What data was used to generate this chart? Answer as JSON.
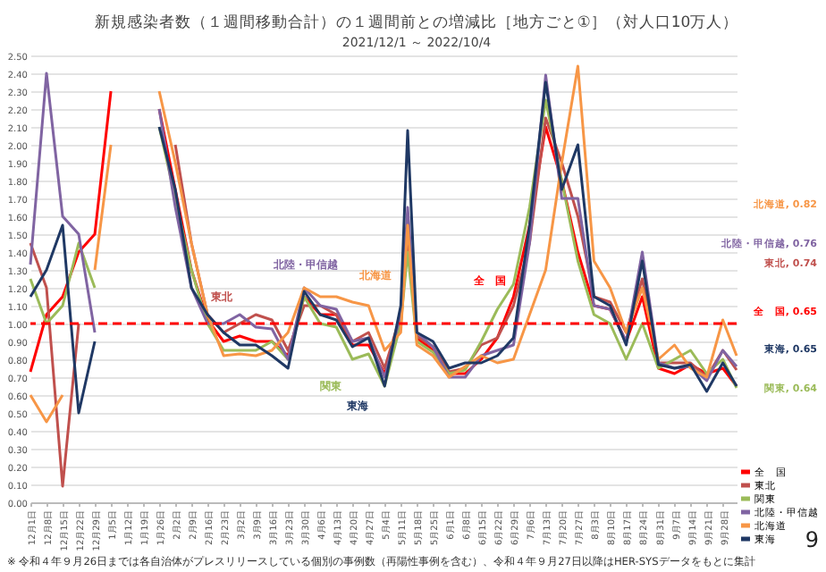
{
  "chart_data": {
    "type": "line",
    "title": "新規感染者数（１週間移動合計）の１週間前との増減比［地方ごと①］（対人口10万人）",
    "subtitle": "2021/12/1 ～ 2022/10/4",
    "x": [
      "2021-12-01",
      "2021-12-08",
      "2021-12-15",
      "2021-12-22",
      "2021-12-29",
      "2022-01-05",
      "2022-01-12",
      "2022-01-19",
      "2022-01-26",
      "2022-02-02",
      "2022-02-09",
      "2022-02-16",
      "2022-02-23",
      "2022-03-02",
      "2022-03-09",
      "2022-03-16",
      "2022-03-23",
      "2022-03-30",
      "2022-04-06",
      "2022-04-13",
      "2022-04-20",
      "2022-04-27",
      "2022-05-04",
      "2022-05-11",
      "2022-05-14",
      "2022-05-18",
      "2022-05-25",
      "2022-06-01",
      "2022-06-08",
      "2022-06-15",
      "2022-06-22",
      "2022-06-29",
      "2022-07-06",
      "2022-07-13",
      "2022-07-20",
      "2022-07-27",
      "2022-08-03",
      "2022-08-10",
      "2022-08-17",
      "2022-08-24",
      "2022-08-31",
      "2022-09-07",
      "2022-09-14",
      "2022-09-21",
      "2022-09-28",
      "2022-10-04"
    ],
    "series": [
      {
        "name": "全　国",
        "color": "#ff0000",
        "values": [
          0.73,
          1.05,
          1.15,
          1.4,
          1.5,
          2.3,
          null,
          null,
          2.2,
          1.75,
          1.3,
          1.02,
          0.9,
          0.93,
          0.9,
          0.9,
          0.82,
          1.15,
          1.05,
          1.05,
          0.88,
          0.88,
          0.72,
          1.0,
          1.5,
          0.92,
          0.85,
          0.72,
          0.72,
          0.8,
          0.92,
          1.15,
          1.55,
          2.1,
          1.8,
          1.4,
          1.1,
          1.08,
          0.9,
          1.15,
          0.75,
          0.72,
          0.77,
          0.72,
          0.75,
          0.65
        ]
      },
      {
        "name": "東北",
        "color": "#c0504d",
        "values": [
          1.45,
          1.2,
          0.09,
          1.0,
          null,
          null,
          null,
          null,
          null,
          2.0,
          1.45,
          1.05,
          0.95,
          1.0,
          1.05,
          1.02,
          0.85,
          1.1,
          1.1,
          1.05,
          0.9,
          0.95,
          0.75,
          1.05,
          1.5,
          0.93,
          0.87,
          0.73,
          0.75,
          0.88,
          0.92,
          1.1,
          1.45,
          2.15,
          1.9,
          1.6,
          1.15,
          1.12,
          0.95,
          1.25,
          0.78,
          0.78,
          0.78,
          0.7,
          0.85,
          0.74
        ]
      },
      {
        "name": "関東",
        "color": "#9bbb59",
        "values": [
          1.25,
          1.0,
          1.1,
          1.45,
          1.2,
          null,
          null,
          null,
          2.1,
          1.7,
          1.3,
          1.0,
          0.85,
          0.85,
          0.85,
          0.9,
          0.8,
          1.15,
          1.0,
          0.98,
          0.8,
          0.83,
          0.65,
          1.0,
          1.4,
          0.9,
          0.84,
          0.72,
          0.74,
          0.9,
          1.08,
          1.22,
          1.65,
          2.25,
          1.8,
          1.35,
          1.05,
          1.0,
          0.8,
          1.0,
          0.75,
          0.8,
          0.85,
          0.72,
          0.8,
          0.64
        ]
      },
      {
        "name": "北陸・甲信越",
        "color": "#8064a2",
        "values": [
          1.33,
          2.4,
          1.6,
          1.5,
          0.95,
          null,
          null,
          null,
          2.2,
          1.65,
          1.2,
          1.0,
          1.0,
          1.05,
          0.98,
          0.97,
          0.8,
          1.2,
          1.1,
          1.08,
          0.9,
          0.92,
          0.7,
          1.05,
          1.65,
          0.95,
          0.87,
          0.7,
          0.7,
          0.82,
          0.85,
          0.88,
          1.45,
          2.39,
          1.7,
          1.7,
          1.1,
          1.08,
          0.9,
          1.4,
          0.78,
          0.75,
          0.76,
          0.68,
          0.85,
          0.76
        ]
      },
      {
        "name": "北海道",
        "color": "#f79646",
        "values": [
          0.6,
          0.45,
          0.6,
          null,
          1.3,
          2.0,
          null,
          null,
          2.3,
          1.9,
          1.45,
          1.05,
          0.82,
          0.83,
          0.82,
          0.85,
          0.95,
          1.2,
          1.15,
          1.15,
          1.12,
          1.1,
          0.85,
          0.95,
          1.55,
          0.88,
          0.82,
          0.7,
          0.76,
          0.82,
          0.78,
          0.8,
          1.05,
          1.3,
          1.9,
          2.44,
          1.35,
          1.2,
          0.95,
          1.2,
          0.8,
          0.88,
          0.75,
          0.7,
          1.02,
          0.82
        ]
      },
      {
        "name": "東海",
        "color": "#1f3864",
        "values": [
          1.15,
          1.3,
          1.55,
          0.5,
          0.9,
          null,
          null,
          null,
          2.1,
          1.75,
          1.2,
          1.05,
          0.95,
          0.88,
          0.88,
          0.82,
          0.75,
          1.18,
          1.05,
          1.02,
          0.87,
          0.92,
          0.65,
          1.1,
          2.08,
          0.95,
          0.9,
          0.75,
          0.78,
          0.78,
          0.82,
          0.92,
          1.55,
          2.35,
          1.75,
          2.0,
          1.15,
          1.1,
          0.88,
          1.35,
          0.77,
          0.75,
          0.77,
          0.62,
          0.78,
          0.65
        ]
      }
    ],
    "xlim": [
      "2021-12-01",
      "2022-10-04"
    ],
    "xticks": [
      {
        "value": "2021-12-01",
        "label": "12月1日"
      },
      {
        "value": "2021-12-08",
        "label": "12月8日"
      },
      {
        "value": "2021-12-15",
        "label": "12月15日"
      },
      {
        "value": "2021-12-22",
        "label": "12月22日"
      },
      {
        "value": "2021-12-29",
        "label": "12月29日"
      },
      {
        "value": "2022-01-05",
        "label": "1月5日"
      },
      {
        "value": "2022-01-12",
        "label": "1月12日"
      },
      {
        "value": "2022-01-19",
        "label": "1月19日"
      },
      {
        "value": "2022-01-26",
        "label": "1月26日"
      },
      {
        "value": "2022-02-02",
        "label": "2月2日"
      },
      {
        "value": "2022-02-09",
        "label": "2月9日"
      },
      {
        "value": "2022-02-16",
        "label": "2月16日"
      },
      {
        "value": "2022-02-23",
        "label": "2月23日"
      },
      {
        "value": "2022-03-02",
        "label": "3月2日"
      },
      {
        "value": "2022-03-09",
        "label": "3月9日"
      },
      {
        "value": "2022-03-16",
        "label": "3月16日"
      },
      {
        "value": "2022-03-23",
        "label": "3月23日"
      },
      {
        "value": "2022-03-30",
        "label": "3月30日"
      },
      {
        "value": "2022-04-06",
        "label": "4月6日"
      },
      {
        "value": "2022-04-13",
        "label": "4月13日"
      },
      {
        "value": "2022-04-20",
        "label": "4月20日"
      },
      {
        "value": "2022-04-27",
        "label": "4月27日"
      },
      {
        "value": "2022-05-04",
        "label": "5月4日"
      },
      {
        "value": "2022-05-11",
        "label": "5月11日"
      },
      {
        "value": "2022-05-18",
        "label": "5月18日"
      },
      {
        "value": "2022-05-25",
        "label": "5月25日"
      },
      {
        "value": "2022-06-01",
        "label": "6月1日"
      },
      {
        "value": "2022-06-08",
        "label": "6月8日"
      },
      {
        "value": "2022-06-15",
        "label": "6月15日"
      },
      {
        "value": "2022-06-22",
        "label": "6月22日"
      },
      {
        "value": "2022-06-29",
        "label": "6月29日"
      },
      {
        "value": "2022-07-06",
        "label": "7月6日"
      },
      {
        "value": "2022-07-13",
        "label": "7月13日"
      },
      {
        "value": "2022-07-20",
        "label": "7月20日"
      },
      {
        "value": "2022-07-27",
        "label": "7月27日"
      },
      {
        "value": "2022-08-03",
        "label": "8月3日"
      },
      {
        "value": "2022-08-10",
        "label": "8月10日"
      },
      {
        "value": "2022-08-17",
        "label": "8月17日"
      },
      {
        "value": "2022-08-24",
        "label": "8月24日"
      },
      {
        "value": "2022-08-31",
        "label": "8月31日"
      },
      {
        "value": "2022-09-07",
        "label": "9月7日"
      },
      {
        "value": "2022-09-14",
        "label": "9月14日"
      },
      {
        "value": "2022-09-21",
        "label": "9月21日"
      },
      {
        "value": "2022-09-28",
        "label": "9月28日"
      }
    ],
    "ylim": [
      0,
      2.5
    ],
    "yticks": [
      {
        "value": 0,
        "label": "0.00"
      },
      {
        "value": 0.1,
        "label": "0.10"
      },
      {
        "value": 0.2,
        "label": "0.20"
      },
      {
        "value": 0.3,
        "label": "0.30"
      },
      {
        "value": 0.4,
        "label": "0.40"
      },
      {
        "value": 0.5,
        "label": "0.50"
      },
      {
        "value": 0.6,
        "label": "0.60"
      },
      {
        "value": 0.7,
        "label": "0.70"
      },
      {
        "value": 0.8,
        "label": "0.80"
      },
      {
        "value": 0.9,
        "label": "0.90"
      },
      {
        "value": 1,
        "label": "1.00"
      },
      {
        "value": 1.1,
        "label": "1.10"
      },
      {
        "value": 1.2,
        "label": "1.20"
      },
      {
        "value": 1.3,
        "label": "1.30"
      },
      {
        "value": 1.4,
        "label": "1.40"
      },
      {
        "value": 1.5,
        "label": "1.50"
      },
      {
        "value": 1.6,
        "label": "1.60"
      },
      {
        "value": 1.7,
        "label": "1.70"
      },
      {
        "value": 1.8,
        "label": "1.80"
      },
      {
        "value": 1.9,
        "label": "1.90"
      },
      {
        "value": 2,
        "label": "2.00"
      },
      {
        "value": 2.1,
        "label": "2.10"
      },
      {
        "value": 2.2,
        "label": "2.20"
      },
      {
        "value": 2.3,
        "label": "2.30"
      },
      {
        "value": 2.4,
        "label": "2.40"
      },
      {
        "value": 2.5,
        "label": "2.50"
      }
    ],
    "ref_lines": [
      {
        "axis": "y",
        "value": 1.0,
        "color": "#ff0000",
        "line_style": "dashed"
      }
    ],
    "annotations": [
      "東北",
      "北陸・甲信越",
      "北海道",
      "全　国",
      "関東",
      "東海",
      "北海道, 0.82",
      "北陸・甲信越, 0.76",
      "東北, 0.74",
      "全　国, 0.65",
      "東海, 0.65",
      "関東, 0.64",
      "※ 令和４年９月26日までは各自治体がプレスリリースしている個別の事例数（再陽性事例を含む）、令和４年９月27日以降はHER-SYSデータをもとに集計",
      "9"
    ],
    "grid": "y",
    "legend": "bottom right",
    "marker": "none",
    "line_style": "solid"
  }
}
